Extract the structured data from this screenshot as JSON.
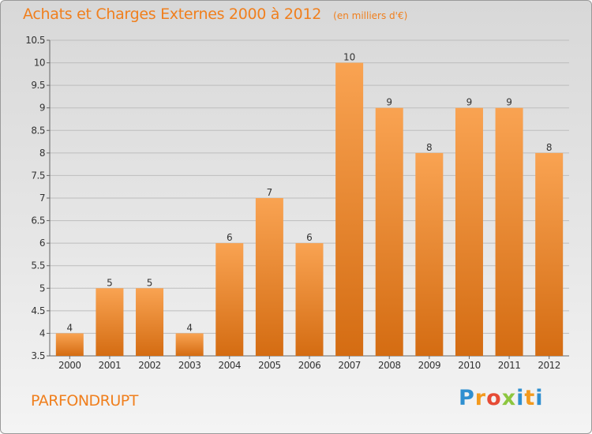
{
  "header": {
    "title": "Achats et Charges Externes 2000 à 2012",
    "subtitle": "(en milliers d'€)"
  },
  "footer": {
    "commune": "PARFONDRUPT",
    "logo_text": "Proxiti"
  },
  "colors": {
    "bar_light": "#f9a352",
    "bar_dark": "#d46c12",
    "title": "#f07f1d",
    "grid": "#bdbdbd"
  },
  "chart_data": {
    "type": "bar",
    "title": "Achats et Charges Externes 2000 à 2012",
    "subtitle": "(en milliers d'€)",
    "xlabel": "",
    "ylabel": "",
    "categories": [
      "2000",
      "2001",
      "2002",
      "2003",
      "2004",
      "2005",
      "2006",
      "2007",
      "2008",
      "2009",
      "2010",
      "2011",
      "2012"
    ],
    "values": [
      4,
      5,
      5,
      4,
      6,
      7,
      6,
      10,
      9,
      8,
      9,
      9,
      8
    ],
    "data_labels": [
      "4",
      "5",
      "5",
      "4",
      "6",
      "7",
      "6",
      "10",
      "9",
      "8",
      "9",
      "9",
      "8"
    ],
    "ylim": [
      3.5,
      10.5
    ],
    "yticks": [
      3.5,
      4,
      4.5,
      5,
      5.5,
      6,
      6.5,
      7,
      7.5,
      8,
      8.5,
      9,
      9.5,
      10,
      10.5
    ],
    "ytick_labels": [
      "3.5",
      "4",
      "4.5",
      "5",
      "5.5",
      "6",
      "6.5",
      "7",
      "7.5",
      "8",
      "8.5",
      "9",
      "9.5",
      "10",
      "10.5"
    ],
    "grid": true,
    "legend": "none"
  }
}
